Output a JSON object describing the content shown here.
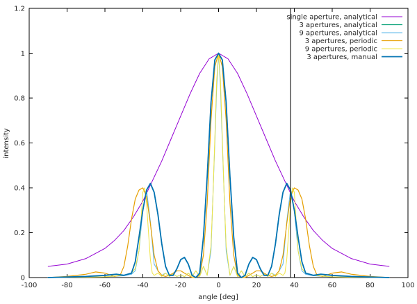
{
  "chart_data": {
    "type": "line",
    "xlabel": "angle [deg]",
    "ylabel": "intensity",
    "xlim": [
      -100,
      100
    ],
    "ylim": [
      0,
      1.2
    ],
    "xticks": [
      -100,
      -80,
      -60,
      -40,
      -20,
      0,
      20,
      40,
      60,
      80,
      100
    ],
    "yticks": [
      0,
      0.2,
      0.4,
      0.6,
      0.8,
      1,
      1.2
    ],
    "xtick_labels": [
      "-100",
      "-80",
      "-60",
      "-40",
      "-20",
      "0",
      "20",
      "40",
      "60",
      "80",
      "100"
    ],
    "ytick_labels": [
      "0",
      "0.2",
      "0.4",
      "0.6",
      "0.8",
      "1",
      "1.2"
    ],
    "grid": false,
    "legend_position": "top-right",
    "vertical_line_x": 38,
    "series": [
      {
        "name": "single aperture, analytical",
        "color": "#9400d3",
        "x": [
          -90,
          -80,
          -70,
          -60,
          -55,
          -50,
          -45,
          -40,
          -35,
          -30,
          -25,
          -20,
          -15,
          -10,
          -5,
          0,
          5,
          10,
          15,
          20,
          25,
          30,
          35,
          40,
          45,
          50,
          55,
          60,
          70,
          80,
          90
        ],
        "y": [
          0.05,
          0.06,
          0.085,
          0.13,
          0.165,
          0.21,
          0.27,
          0.34,
          0.43,
          0.52,
          0.62,
          0.72,
          0.82,
          0.91,
          0.975,
          1,
          0.975,
          0.91,
          0.82,
          0.72,
          0.62,
          0.52,
          0.43,
          0.34,
          0.27,
          0.21,
          0.165,
          0.13,
          0.085,
          0.06,
          0.05
        ]
      },
      {
        "name": "3 apertures, analytical",
        "color": "#009e73",
        "x": [
          -90,
          -70,
          -60,
          -54,
          -50,
          -46,
          -44,
          -42,
          -40,
          -38,
          -36,
          -34,
          -32,
          -30,
          -28,
          -26,
          -24,
          -22,
          -20,
          -18,
          -16,
          -14,
          -12,
          -10,
          -8,
          -6,
          -4,
          -2,
          0,
          2,
          4,
          6,
          8,
          10,
          12,
          14,
          16,
          18,
          20,
          22,
          24,
          26,
          28,
          30,
          32,
          34,
          36,
          38,
          40,
          42,
          44,
          46,
          50,
          54,
          60,
          70,
          90
        ],
        "y": [
          0,
          0.005,
          0.01,
          0.015,
          0.01,
          0.02,
          0.07,
          0.18,
          0.3,
          0.39,
          0.42,
          0.38,
          0.28,
          0.15,
          0.05,
          0.01,
          0.01,
          0.04,
          0.08,
          0.09,
          0.06,
          0.01,
          0,
          0.02,
          0.18,
          0.45,
          0.78,
          0.97,
          1,
          0.97,
          0.78,
          0.45,
          0.18,
          0.02,
          0,
          0.01,
          0.06,
          0.09,
          0.08,
          0.04,
          0.01,
          0.01,
          0.05,
          0.15,
          0.28,
          0.38,
          0.42,
          0.39,
          0.3,
          0.18,
          0.07,
          0.02,
          0.01,
          0.015,
          0.01,
          0.005,
          0
        ]
      },
      {
        "name": "9 apertures, analytical",
        "color": "#56b4e9",
        "x": [
          -90,
          -60,
          -50,
          -46,
          -44,
          -42,
          -40,
          -38,
          -36,
          -34,
          -32,
          -30,
          -28,
          -26,
          -24,
          -22,
          -20,
          -18,
          -16,
          -14,
          -12,
          -10,
          -8,
          -6,
          -4,
          -2,
          -1,
          0,
          1,
          2,
          4,
          6,
          8,
          10,
          12,
          14,
          16,
          18,
          20,
          22,
          24,
          26,
          28,
          30,
          32,
          34,
          36,
          38,
          40,
          42,
          44,
          46,
          50,
          60,
          90
        ],
        "y": [
          0,
          0.003,
          0.008,
          0.015,
          0.03,
          0.12,
          0.3,
          0.39,
          0.25,
          0.06,
          0.03,
          0.01,
          0.02,
          0.005,
          0.015,
          0.005,
          0.012,
          0.004,
          0.02,
          0.005,
          0.03,
          0.005,
          0.05,
          0.01,
          0.12,
          0.6,
          0.85,
          1,
          0.85,
          0.6,
          0.12,
          0.01,
          0.05,
          0.005,
          0.03,
          0.005,
          0.02,
          0.004,
          0.012,
          0.005,
          0.015,
          0.005,
          0.02,
          0.01,
          0.03,
          0.06,
          0.25,
          0.39,
          0.3,
          0.12,
          0.03,
          0.015,
          0.008,
          0.003,
          0
        ]
      },
      {
        "name": "3 apertures, periodic",
        "color": "#e69f00",
        "x": [
          -90,
          -80,
          -70,
          -65,
          -60,
          -55,
          -52,
          -50,
          -48,
          -46,
          -44,
          -42,
          -40,
          -38,
          -36,
          -34,
          -32,
          -30,
          -28,
          -26,
          -24,
          -22,
          -20,
          -18,
          -16,
          -14,
          -12,
          -10,
          -8,
          -6,
          -4,
          -2,
          0,
          2,
          4,
          6,
          8,
          10,
          12,
          14,
          16,
          18,
          20,
          22,
          24,
          26,
          28,
          30,
          32,
          34,
          36,
          38,
          40,
          42,
          44,
          46,
          48,
          50,
          52,
          55,
          60,
          65,
          70,
          80,
          90
        ],
        "y": [
          0,
          0.005,
          0.015,
          0.025,
          0.02,
          0.005,
          0.01,
          0.05,
          0.14,
          0.26,
          0.35,
          0.39,
          0.4,
          0.36,
          0.24,
          0.1,
          0.03,
          0.01,
          0.005,
          0.01,
          0.02,
          0.03,
          0.03,
          0.02,
          0.01,
          0,
          0,
          0.01,
          0.1,
          0.33,
          0.7,
          0.94,
          1,
          0.94,
          0.7,
          0.33,
          0.1,
          0.01,
          0,
          0,
          0.01,
          0.02,
          0.03,
          0.03,
          0.02,
          0.01,
          0.005,
          0.01,
          0.03,
          0.1,
          0.24,
          0.36,
          0.4,
          0.39,
          0.35,
          0.26,
          0.14,
          0.05,
          0.01,
          0.005,
          0.02,
          0.025,
          0.015,
          0.005,
          0
        ]
      },
      {
        "name": "9 apertures, periodic",
        "color": "#f0e442",
        "x": [
          -90,
          -60,
          -50,
          -46,
          -44,
          -42,
          -41,
          -40,
          -39,
          -38,
          -37,
          -36,
          -35,
          -34,
          -32,
          -30,
          -28,
          -26,
          -24,
          -22,
          -20,
          -18,
          -16,
          -14,
          -12,
          -10,
          -8,
          -6,
          -4,
          -3,
          -2,
          -1,
          0,
          1,
          2,
          3,
          4,
          6,
          8,
          10,
          12,
          14,
          16,
          18,
          20,
          22,
          24,
          26,
          28,
          30,
          32,
          34,
          35,
          36,
          37,
          38,
          39,
          40,
          41,
          42,
          44,
          46,
          50,
          60,
          90
        ],
        "y": [
          0,
          0.003,
          0.01,
          0.02,
          0.04,
          0.12,
          0.25,
          0.38,
          0.4,
          0.33,
          0.2,
          0.08,
          0.02,
          0.01,
          0.02,
          0.005,
          0.02,
          0.005,
          0.015,
          0.005,
          0.012,
          0.004,
          0.02,
          0.005,
          0.03,
          0.005,
          0.05,
          0.01,
          0.14,
          0.35,
          0.62,
          0.88,
          1,
          0.88,
          0.62,
          0.35,
          0.14,
          0.01,
          0.05,
          0.005,
          0.03,
          0.005,
          0.02,
          0.004,
          0.012,
          0.005,
          0.015,
          0.005,
          0.02,
          0.005,
          0.02,
          0.01,
          0.02,
          0.08,
          0.2,
          0.33,
          0.4,
          0.38,
          0.25,
          0.12,
          0.04,
          0.02,
          0.01,
          0.003,
          0
        ]
      },
      {
        "name": "3 apertures, manual",
        "color": "#0072b2",
        "x": [
          -90,
          -70,
          -60,
          -54,
          -50,
          -46,
          -44,
          -42,
          -40,
          -38,
          -36,
          -34,
          -32,
          -30,
          -28,
          -26,
          -24,
          -22,
          -20,
          -18,
          -16,
          -14,
          -12,
          -10,
          -8,
          -6,
          -4,
          -2,
          0,
          2,
          4,
          6,
          8,
          10,
          12,
          14,
          16,
          18,
          20,
          22,
          24,
          26,
          28,
          30,
          32,
          34,
          36,
          38,
          40,
          42,
          44,
          46,
          50,
          54,
          60,
          70,
          90
        ],
        "y": [
          0,
          0.005,
          0.01,
          0.015,
          0.01,
          0.02,
          0.07,
          0.18,
          0.3,
          0.39,
          0.42,
          0.38,
          0.28,
          0.15,
          0.05,
          0.01,
          0.01,
          0.04,
          0.08,
          0.09,
          0.06,
          0.01,
          0,
          0.02,
          0.18,
          0.45,
          0.78,
          0.97,
          1,
          0.97,
          0.78,
          0.45,
          0.18,
          0.02,
          0,
          0.01,
          0.06,
          0.09,
          0.08,
          0.04,
          0.01,
          0.01,
          0.05,
          0.15,
          0.28,
          0.38,
          0.42,
          0.39,
          0.3,
          0.18,
          0.07,
          0.02,
          0.01,
          0.015,
          0.01,
          0.005,
          0
        ]
      }
    ]
  }
}
